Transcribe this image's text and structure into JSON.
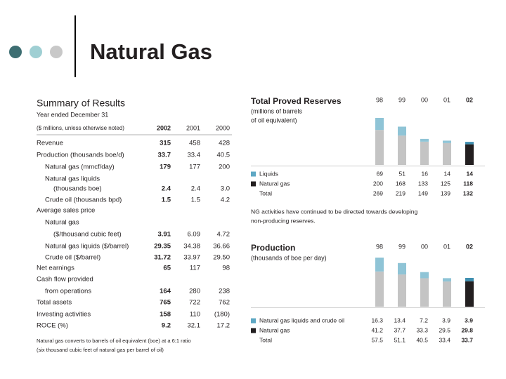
{
  "title": "Natural Gas",
  "summary": {
    "title": "Summary of Results",
    "subtitle": "Year ended December 31",
    "header": {
      "label": "($ millions, unless otherwise noted)",
      "columns": [
        "2002",
        "2001",
        "2000"
      ]
    },
    "rows": [
      {
        "label": "Revenue",
        "values": [
          "315",
          "458",
          "428"
        ]
      },
      {
        "label": "Production (thousands boe/d)",
        "values": [
          "33.7",
          "33.4",
          "40.5"
        ]
      },
      {
        "label": "Natural gas (mmcf/day)",
        "values": [
          "179",
          "177",
          "200"
        ]
      },
      {
        "label": "Natural gas liquids"
      },
      {
        "label": "(thousands boe)",
        "values": [
          "2.4",
          "2.4",
          "3.0"
        ]
      },
      {
        "label": "Crude oil (thousands bpd)",
        "values": [
          "1.5",
          "1.5",
          "4.2"
        ]
      },
      {
        "label": "Average sales price"
      },
      {
        "label": "Natural gas"
      },
      {
        "label": "($/thousand cubic feet)",
        "values": [
          "3.91",
          "6.09",
          "4.72"
        ]
      },
      {
        "label": "Natural gas liquids ($/barrel)",
        "values": [
          "29.35",
          "34.38",
          "36.66"
        ]
      },
      {
        "label": "Crude oil ($/barrel)",
        "values": [
          "31.72",
          "33.97",
          "29.50"
        ]
      },
      {
        "label": "Net earnings",
        "values": [
          "65",
          "117",
          "98"
        ]
      },
      {
        "label": "Cash flow provided"
      },
      {
        "label": "from operations",
        "values": [
          "164",
          "280",
          "238"
        ]
      },
      {
        "label": "Total assets",
        "values": [
          "765",
          "722",
          "762"
        ]
      },
      {
        "label": "Investing activities",
        "values": [
          "158",
          "110",
          "(180)"
        ]
      },
      {
        "label": "ROCE (%)",
        "values": [
          "9.2",
          "32.1",
          "17.2"
        ]
      }
    ],
    "footnote": [
      "Natural gas converts to barrels of oil equivalent (boe) at a 6:1 ratio",
      "(six thousand cubic feet of natural gas per barrel of oil)"
    ]
  },
  "chart_data": [
    {
      "type": "bar",
      "stacked": true,
      "title": "Total Proved Reserves",
      "subtitle": [
        "(millions of barrels",
        "of oil equivalent)"
      ],
      "categories": [
        "98",
        "99",
        "00",
        "01",
        "02"
      ],
      "series": [
        {
          "name": "Liquids",
          "color": "#5fa8c4",
          "colors": [
            "#8fc4d6",
            "#8fc4d6",
            "#8fc4d6",
            "#8fc4d6",
            "#3f8fb0"
          ],
          "values": [
            69,
            51,
            16,
            14,
            14
          ]
        },
        {
          "name": "Natural gas",
          "color": "#231f20",
          "colors": [
            "#c4c4c4",
            "#c4c4c4",
            "#c4c4c4",
            "#c4c4c4",
            "#231f20"
          ],
          "values": [
            200,
            168,
            133,
            125,
            118
          ]
        }
      ],
      "total": {
        "name": "Total",
        "values": [
          269,
          219,
          149,
          139,
          132
        ]
      },
      "note": [
        "NG activities have continued to be directed towards developing",
        "non-producing reserves."
      ]
    },
    {
      "type": "bar",
      "stacked": true,
      "title": "Production",
      "subtitle": [
        "(thousands of boe per day)"
      ],
      "categories": [
        "98",
        "99",
        "00",
        "01",
        "02"
      ],
      "series": [
        {
          "name": "Natural gas liquids and crude oil",
          "color": "#5fa8c4",
          "colors": [
            "#8fc4d6",
            "#8fc4d6",
            "#8fc4d6",
            "#8fc4d6",
            "#3f8fb0"
          ],
          "values": [
            16.3,
            13.4,
            7.2,
            3.9,
            3.9
          ]
        },
        {
          "name": "Natural gas",
          "color": "#231f20",
          "colors": [
            "#c4c4c4",
            "#c4c4c4",
            "#c4c4c4",
            "#c4c4c4",
            "#231f20"
          ],
          "values": [
            41.2,
            37.7,
            33.3,
            29.5,
            29.8
          ]
        }
      ],
      "total": {
        "name": "Total",
        "values": [
          57.5,
          51.1,
          40.5,
          33.4,
          33.7
        ]
      }
    }
  ]
}
